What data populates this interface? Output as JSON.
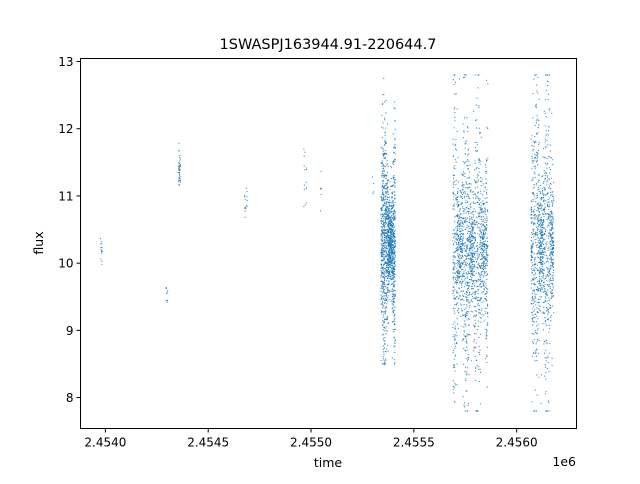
{
  "chart_data": {
    "type": "scatter",
    "title": "1SWASPJ163944.91-220644.7",
    "xlabel": "time",
    "ylabel": "flux",
    "x_offset_label": "1e6",
    "xlim": [
      2453879,
      2456291
    ],
    "ylim": [
      7.54,
      13.045
    ],
    "x_ticks": [
      2454000,
      2454500,
      2455000,
      2455500,
      2456000
    ],
    "x_tick_labels": [
      "2.4540",
      "2.4545",
      "2.4550",
      "2.4555",
      "2.4560"
    ],
    "y_ticks": [
      8,
      9,
      10,
      11,
      12,
      13
    ],
    "y_tick_labels": [
      "8",
      "9",
      "10",
      "11",
      "12",
      "13"
    ],
    "grid": false,
    "color": "#1f77b4",
    "clusters": [
      {
        "t": [
          2453975,
          2453985
        ],
        "flux_center": 10.2,
        "flux_range": [
          9.6,
          10.65
        ],
        "count": 15
      },
      {
        "t": [
          2454295,
          2454305
        ],
        "flux_center": 9.5,
        "flux_range": [
          9.2,
          9.85
        ],
        "count": 10
      },
      {
        "t": [
          2454355,
          2454365
        ],
        "flux_center": 11.4,
        "flux_range": [
          10.8,
          12.2
        ],
        "count": 40
      },
      {
        "t": [
          2454675,
          2454690
        ],
        "flux_center": 10.9,
        "flux_range": [
          10.5,
          11.25
        ],
        "count": 15
      },
      {
        "t": [
          2454965,
          2454980
        ],
        "flux_center": 11.2,
        "flux_range": [
          10.6,
          11.85
        ],
        "count": 15
      },
      {
        "t": [
          2455045,
          2455055
        ],
        "flux_center": 11.0,
        "flux_range": [
          10.5,
          11.4
        ],
        "count": 6
      },
      {
        "t": [
          2455295,
          2455305
        ],
        "flux_center": 11.1,
        "flux_range": [
          10.2,
          11.4
        ],
        "count": 4
      },
      {
        "t": [
          2455340,
          2455410
        ],
        "flux_center": 10.3,
        "flux_range": [
          8.5,
          12.8
        ],
        "count": 1400
      },
      {
        "t": [
          2455690,
          2455860
        ],
        "flux_center": 10.2,
        "flux_range": [
          7.8,
          12.8
        ],
        "count": 1600
      },
      {
        "t": [
          2456070,
          2456180
        ],
        "flux_center": 10.3,
        "flux_range": [
          7.8,
          12.8
        ],
        "count": 1100
      }
    ]
  }
}
